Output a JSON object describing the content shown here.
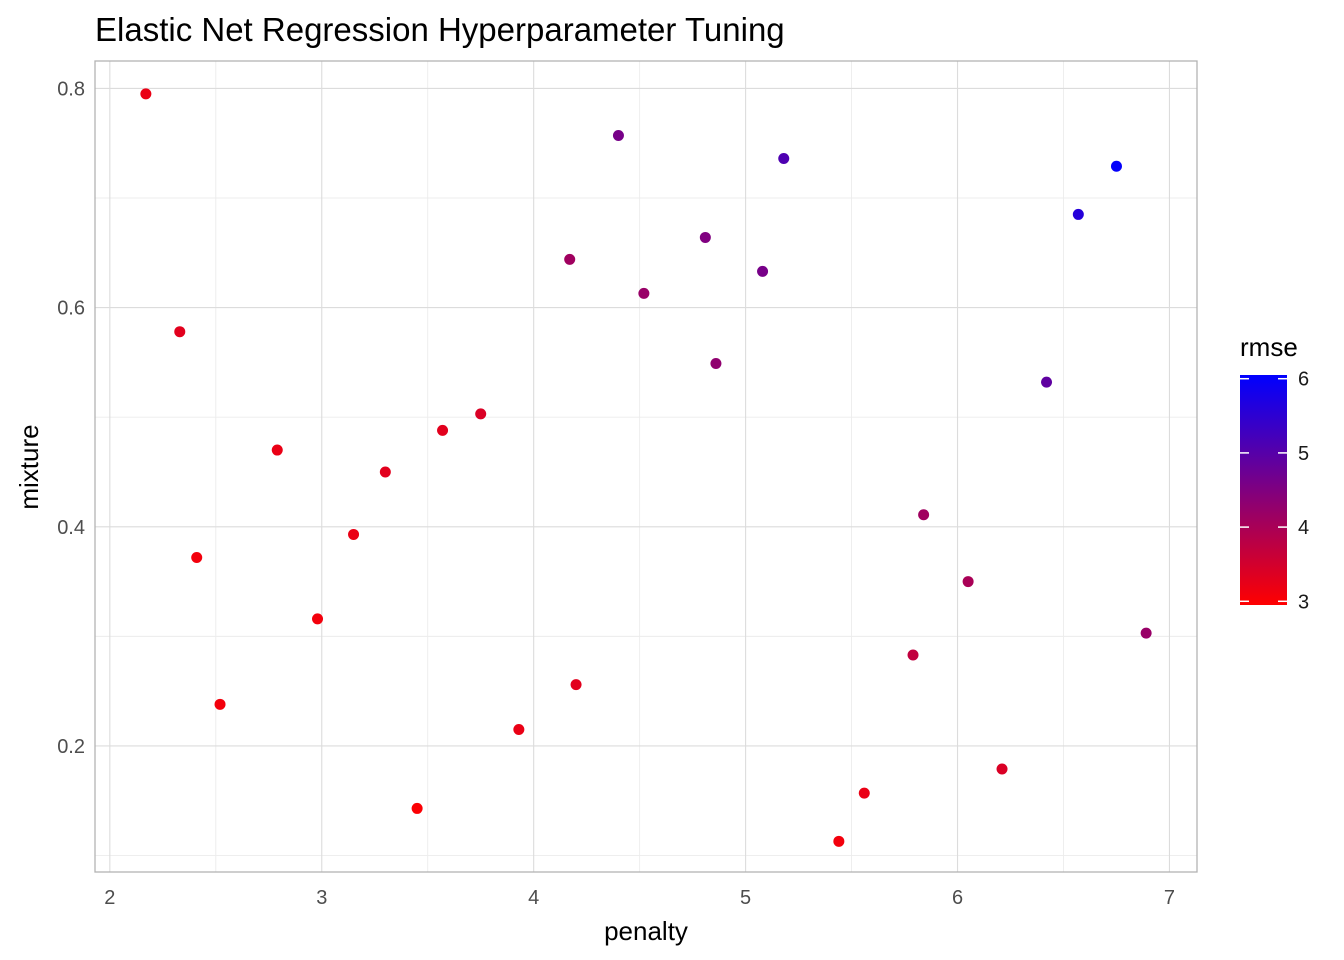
{
  "chart_data": {
    "type": "scatter",
    "title": "Elastic Net Regression Hyperparameter Tuning",
    "xlabel": "penalty",
    "ylabel": "mixture",
    "xlim": [
      1.93,
      7.13
    ],
    "ylim": [
      0.085,
      0.825
    ],
    "xticks": [
      2,
      3,
      4,
      5,
      6,
      7
    ],
    "yticks": [
      0.2,
      0.4,
      0.6,
      0.8
    ],
    "grid": true,
    "legend": {
      "title": "rmse",
      "placement": "right",
      "range": [
        2.95,
        6.05
      ],
      "ticks": [
        3,
        4,
        5,
        6
      ],
      "low_color": "#FF0000",
      "high_color": "#0000FF"
    },
    "points": [
      {
        "x": 2.17,
        "y": 0.795,
        "rmse": 3.2
      },
      {
        "x": 2.33,
        "y": 0.578,
        "rmse": 3.3
      },
      {
        "x": 2.41,
        "y": 0.372,
        "rmse": 3.1
      },
      {
        "x": 2.52,
        "y": 0.238,
        "rmse": 3.1
      },
      {
        "x": 2.79,
        "y": 0.47,
        "rmse": 3.2
      },
      {
        "x": 2.98,
        "y": 0.316,
        "rmse": 3.1
      },
      {
        "x": 3.15,
        "y": 0.393,
        "rmse": 3.2
      },
      {
        "x": 3.3,
        "y": 0.45,
        "rmse": 3.3
      },
      {
        "x": 3.45,
        "y": 0.143,
        "rmse": 3.0
      },
      {
        "x": 3.57,
        "y": 0.488,
        "rmse": 3.3
      },
      {
        "x": 3.75,
        "y": 0.503,
        "rmse": 3.4
      },
      {
        "x": 3.93,
        "y": 0.215,
        "rmse": 3.2
      },
      {
        "x": 4.17,
        "y": 0.644,
        "rmse": 4.1
      },
      {
        "x": 4.2,
        "y": 0.256,
        "rmse": 3.3
      },
      {
        "x": 4.4,
        "y": 0.757,
        "rmse": 4.6
      },
      {
        "x": 4.52,
        "y": 0.613,
        "rmse": 4.2
      },
      {
        "x": 4.81,
        "y": 0.664,
        "rmse": 4.5
      },
      {
        "x": 4.86,
        "y": 0.549,
        "rmse": 4.3
      },
      {
        "x": 5.08,
        "y": 0.633,
        "rmse": 4.6
      },
      {
        "x": 5.18,
        "y": 0.736,
        "rmse": 5.1
      },
      {
        "x": 5.44,
        "y": 0.113,
        "rmse": 3.1
      },
      {
        "x": 5.56,
        "y": 0.157,
        "rmse": 3.2
      },
      {
        "x": 5.79,
        "y": 0.283,
        "rmse": 3.7
      },
      {
        "x": 5.84,
        "y": 0.411,
        "rmse": 4.1
      },
      {
        "x": 6.05,
        "y": 0.35,
        "rmse": 4.0
      },
      {
        "x": 6.21,
        "y": 0.179,
        "rmse": 3.4
      },
      {
        "x": 6.42,
        "y": 0.532,
        "rmse": 4.9
      },
      {
        "x": 6.57,
        "y": 0.685,
        "rmse": 5.6
      },
      {
        "x": 6.75,
        "y": 0.729,
        "rmse": 6.0
      },
      {
        "x": 6.89,
        "y": 0.303,
        "rmse": 4.2
      }
    ]
  }
}
